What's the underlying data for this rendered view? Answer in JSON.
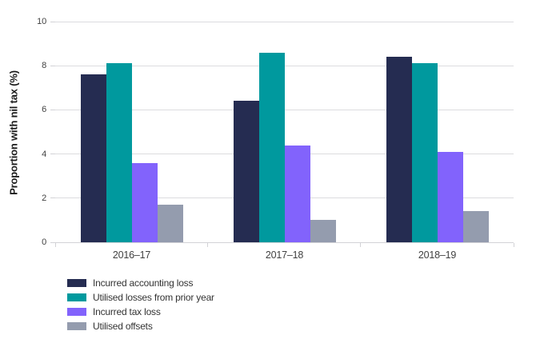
{
  "chart_data": {
    "type": "bar",
    "title": "",
    "xlabel": "",
    "ylabel": "Proportion with nil tax (%)",
    "ylim": [
      0,
      10
    ],
    "yticks": [
      0,
      2,
      4,
      6,
      8,
      10
    ],
    "grid": true,
    "legend_position": "bottom-left",
    "categories": [
      "2016–17",
      "2017–18",
      "2018–19"
    ],
    "series": [
      {
        "name": "Incurred accounting loss",
        "color": "#252c51",
        "values": [
          7.6,
          6.4,
          8.4
        ]
      },
      {
        "name": "Utilised losses from prior year",
        "color": "#00999e",
        "values": [
          8.1,
          8.6,
          8.1
        ]
      },
      {
        "name": "Incurred tax loss",
        "color": "#8263fc",
        "values": [
          3.6,
          4.4,
          4.1
        ]
      },
      {
        "name": "Utilised offsets",
        "color": "#949cae",
        "values": [
          1.7,
          1.0,
          1.4
        ]
      }
    ]
  },
  "colors": {
    "background": "#ffffff",
    "gridline": "#dcdcdf",
    "axis": "#d2d2d6",
    "tick_text": "#414141",
    "legend_text": "#333333"
  }
}
